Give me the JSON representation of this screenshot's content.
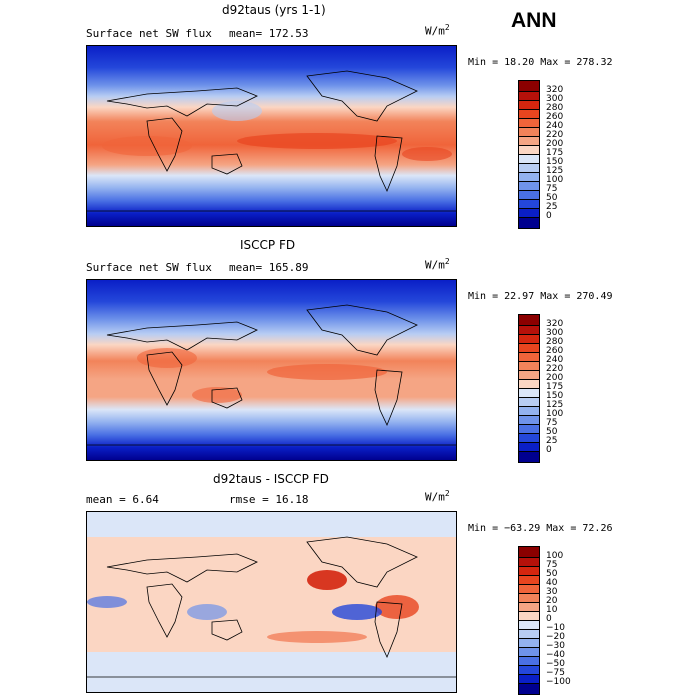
{
  "season": "ANN",
  "panels": [
    {
      "id": "model",
      "title": "d92taus (yrs 1-1)",
      "variable": "Surface net SW flux",
      "stat_text": "mean=  172.53",
      "units": "W/m",
      "units_exp": "2",
      "minmax": "Min =  18.20 Max = 278.32",
      "colorbar": {
        "labels": [
          "320",
          "300",
          "280",
          "260",
          "240",
          "220",
          "200",
          "175",
          "150",
          "125",
          "100",
          "75",
          "50",
          "25",
          "0"
        ],
        "colors": [
          "#8b0000",
          "#b5110a",
          "#d4260f",
          "#e8451f",
          "#f0643a",
          "#f2835a",
          "#f5a584",
          "#fbd6c3",
          "#dbe6f8",
          "#b8cdf3",
          "#93b2ef",
          "#6f93ea",
          "#4a70e4",
          "#2447da",
          "#0a1fc7",
          "#00008f"
        ]
      }
    },
    {
      "id": "obs",
      "title": "ISCCP FD",
      "variable": "Surface net SW flux",
      "stat_text": "mean= 165.89",
      "units": "W/m",
      "units_exp": "2",
      "minmax": "Min =  22.97 Max = 270.49",
      "colorbar": {
        "labels": [
          "320",
          "300",
          "280",
          "260",
          "240",
          "220",
          "200",
          "175",
          "150",
          "125",
          "100",
          "75",
          "50",
          "25",
          "0"
        ],
        "colors": [
          "#8b0000",
          "#b5110a",
          "#d4260f",
          "#e8451f",
          "#f0643a",
          "#f2835a",
          "#f5a584",
          "#fbd6c3",
          "#dbe6f8",
          "#b8cdf3",
          "#93b2ef",
          "#6f93ea",
          "#4a70e4",
          "#2447da",
          "#0a1fc7",
          "#00008f"
        ]
      }
    },
    {
      "id": "diff",
      "title": "d92taus - ISCCP FD",
      "mean_text": "mean =   6.64",
      "rmse_text": "rmse =  16.18",
      "units": "W/m",
      "units_exp": "2",
      "minmax": "Min = −63.29 Max =  72.26",
      "colorbar": {
        "labels": [
          "100",
          "75",
          "50",
          "40",
          "30",
          "20",
          "10",
          "0",
          "−10",
          "−20",
          "−30",
          "−40",
          "−50",
          "−75",
          "−100"
        ],
        "colors": [
          "#8b0000",
          "#b5110a",
          "#d4260f",
          "#e8451f",
          "#f0643a",
          "#f2835a",
          "#f5a584",
          "#fbd6c3",
          "#dbe6f8",
          "#b8cdf3",
          "#93b2ef",
          "#6f93ea",
          "#4a70e4",
          "#2447da",
          "#0a1fc7",
          "#00008f"
        ]
      }
    }
  ]
}
